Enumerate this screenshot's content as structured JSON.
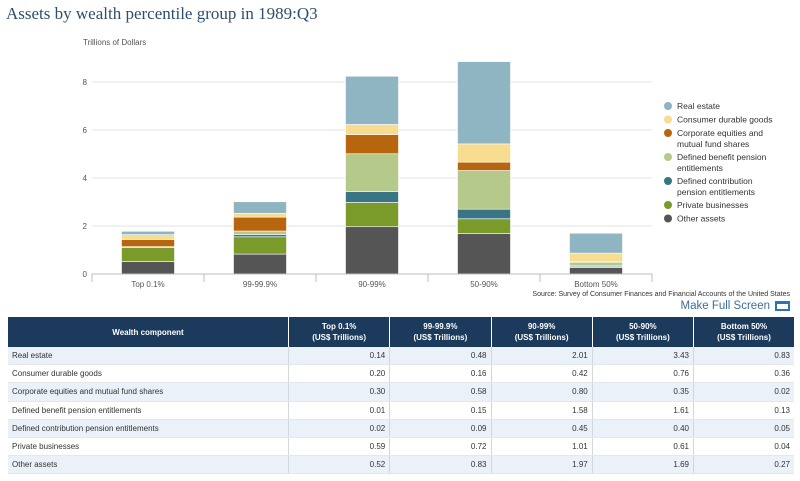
{
  "title": "Assets by wealth percentile group in 1989:Q3",
  "source": "Source: Survey of Consumer Finances and Financial Accounts of the United States",
  "fullscreen_label": "Make Full Screen",
  "chart_data": {
    "type": "bar",
    "stacked": true,
    "ylabel": "Trillions of Dollars",
    "ylim": [
      0,
      9
    ],
    "yticks": [
      0,
      2,
      4,
      6,
      8
    ],
    "grid": true,
    "legend_position": "right",
    "categories": [
      "Top 0.1%",
      "99-99.9%",
      "90-99%",
      "50-90%",
      "Bottom 50%"
    ],
    "series": [
      {
        "name": "Other assets",
        "color": "#555555",
        "values": [
          0.52,
          0.83,
          1.97,
          1.69,
          0.27
        ]
      },
      {
        "name": "Private businesses",
        "color": "#7a9a2a",
        "values": [
          0.59,
          0.72,
          1.01,
          0.61,
          0.04
        ]
      },
      {
        "name": "Defined contribution pension entitlements",
        "color": "#3a7585",
        "values": [
          0.02,
          0.09,
          0.45,
          0.4,
          0.05
        ]
      },
      {
        "name": "Defined benefit pension entitlements",
        "color": "#b5c98a",
        "values": [
          0.01,
          0.15,
          1.58,
          1.61,
          0.13
        ]
      },
      {
        "name": "Corporate equities and mutual fund shares",
        "color": "#b8650f",
        "values": [
          0.3,
          0.58,
          0.8,
          0.35,
          0.02
        ]
      },
      {
        "name": "Consumer durable goods",
        "color": "#f8dc90",
        "values": [
          0.2,
          0.16,
          0.42,
          0.76,
          0.36
        ]
      },
      {
        "name": "Real estate",
        "color": "#90b5c2",
        "values": [
          0.14,
          0.48,
          2.01,
          3.43,
          0.83
        ]
      }
    ],
    "legend_order": [
      "Real estate",
      "Consumer durable goods",
      "Corporate equities and mutual fund shares",
      "Defined benefit pension entitlements",
      "Defined contribution pension entitlements",
      "Private businesses",
      "Other assets"
    ],
    "legend_lines": {
      "Real estate": [
        "Real estate"
      ],
      "Consumer durable goods": [
        "Consumer durable goods"
      ],
      "Corporate equities and mutual fund shares": [
        "Corporate equities and",
        "mutual fund shares"
      ],
      "Defined benefit pension entitlements": [
        "Defined benefit pension",
        "entitlements"
      ],
      "Defined contribution pension entitlements": [
        "Defined contribution",
        "pension entitlements"
      ],
      "Private businesses": [
        "Private businesses"
      ],
      "Other assets": [
        "Other assets"
      ]
    }
  },
  "table": {
    "header_row": {
      "component": "Wealth component",
      "groups": [
        {
          "l1": "Top 0.1%",
          "l2": "(US$ Trillions)"
        },
        {
          "l1": "99-99.9%",
          "l2": "(US$ Trillions)"
        },
        {
          "l1": "90-99%",
          "l2": "(US$ Trillions)"
        },
        {
          "l1": "50-90%",
          "l2": "(US$ Trillions)"
        },
        {
          "l1": "Bottom 50%",
          "l2": "(US$ Trillions)"
        }
      ]
    },
    "rows": [
      {
        "name": "Real estate",
        "values": [
          "0.14",
          "0.48",
          "2.01",
          "3.43",
          "0.83"
        ]
      },
      {
        "name": "Consumer durable goods",
        "values": [
          "0.20",
          "0.16",
          "0.42",
          "0.76",
          "0.36"
        ]
      },
      {
        "name": "Corporate equities and mutual fund shares",
        "values": [
          "0.30",
          "0.58",
          "0.80",
          "0.35",
          "0.02"
        ]
      },
      {
        "name": "Defined benefit pension entitlements",
        "values": [
          "0.01",
          "0.15",
          "1.58",
          "1.61",
          "0.13"
        ]
      },
      {
        "name": "Defined contribution pension entitlements",
        "values": [
          "0.02",
          "0.09",
          "0.45",
          "0.40",
          "0.05"
        ]
      },
      {
        "name": "Private businesses",
        "values": [
          "0.59",
          "0.72",
          "1.01",
          "0.61",
          "0.04"
        ]
      },
      {
        "name": "Other assets",
        "values": [
          "0.52",
          "0.83",
          "1.97",
          "1.69",
          "0.27"
        ]
      }
    ]
  }
}
